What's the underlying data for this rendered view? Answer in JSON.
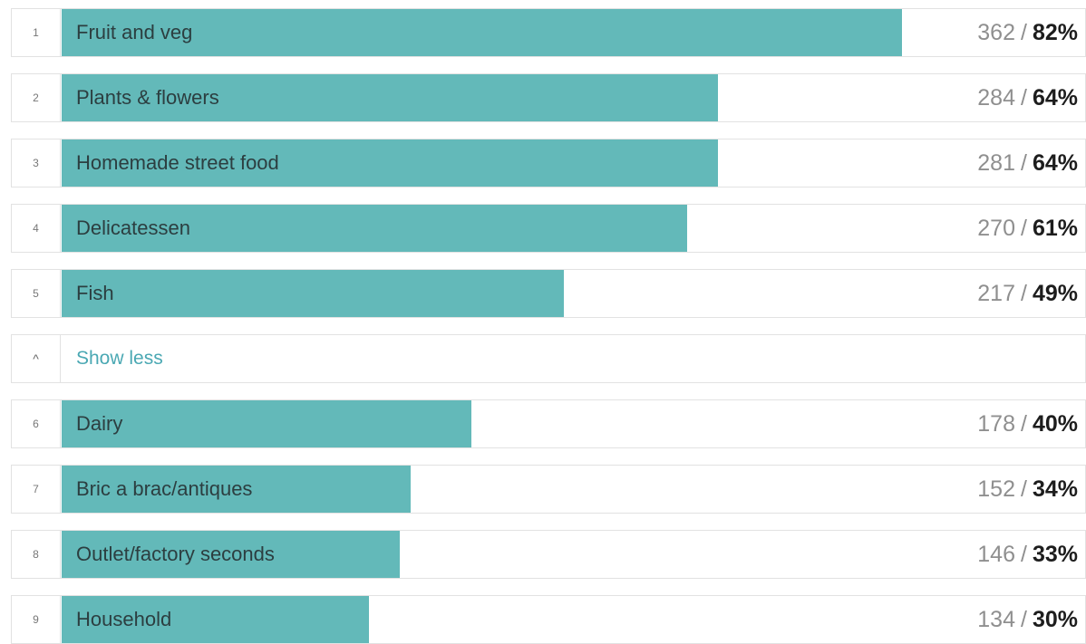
{
  "chart_data": {
    "type": "bar",
    "orientation": "horizontal",
    "xlim": [
      0,
      100
    ],
    "bar_color": "#63b9b9",
    "categories": [
      "Fruit and veg",
      "Plants & flowers",
      "Homemade street food",
      "Delicatessen",
      "Fish",
      "Dairy",
      "Bric a brac/antiques",
      "Outlet/factory seconds",
      "Household"
    ],
    "ranks": [
      "1",
      "2",
      "3",
      "4",
      "5",
      "6",
      "7",
      "8",
      "9"
    ],
    "counts": [
      362,
      284,
      281,
      270,
      217,
      178,
      152,
      146,
      134
    ],
    "percent_labels": [
      "82%",
      "64%",
      "64%",
      "61%",
      "49%",
      "40%",
      "34%",
      "33%",
      "30%"
    ],
    "values": [
      82,
      64,
      64,
      61,
      49,
      40,
      34,
      33,
      30
    ]
  },
  "toggle": {
    "icon": "chevron-up-icon",
    "glyph": "^",
    "label": "Show less"
  },
  "colors": {
    "bar": "#63b9b9",
    "link": "#4aa8b3",
    "count": "#8f8f8f",
    "percent": "#1d1d1d"
  }
}
